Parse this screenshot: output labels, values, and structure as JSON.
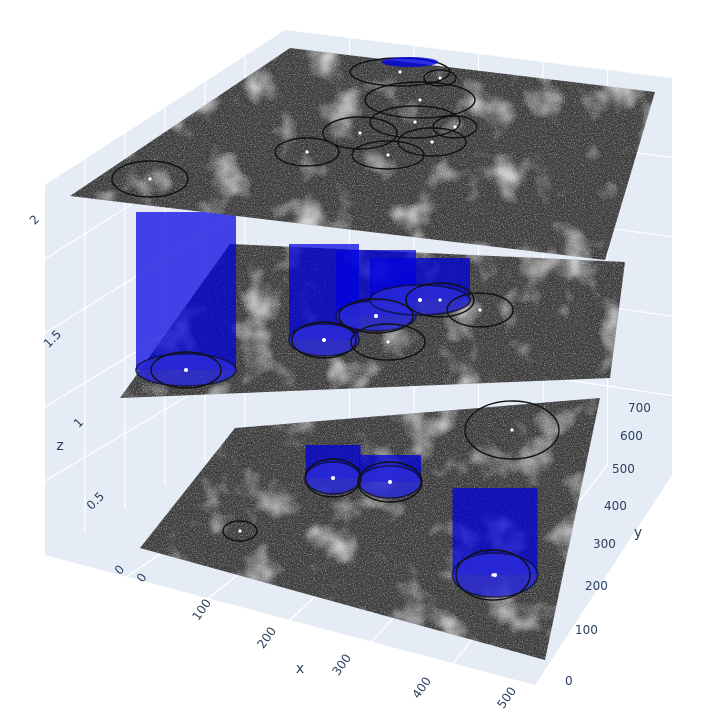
{
  "chart_data": {
    "type": "scatter3d",
    "description_free": true,
    "axes": {
      "x": {
        "title": "x",
        "ticks": [
          "0",
          "100",
          "200",
          "300",
          "400",
          "500"
        ],
        "range": [
          0,
          512
        ]
      },
      "y": {
        "title": "y",
        "ticks": [
          "0",
          "100",
          "200",
          "300",
          "400",
          "500",
          "600",
          "700"
        ],
        "range": [
          0,
          720
        ]
      },
      "z": {
        "title": "z",
        "ticks": [
          "0",
          "0.5",
          "1",
          "1.5",
          "2"
        ],
        "range": [
          0,
          2
        ]
      }
    },
    "image_planes_z": [
      0,
      1,
      2
    ],
    "colors": {
      "plane": "#3c3c3c",
      "cylinder": "#0000e0",
      "circle": "#111111",
      "grid": "#ffffff",
      "wall": "#e5ecf6"
    }
  }
}
